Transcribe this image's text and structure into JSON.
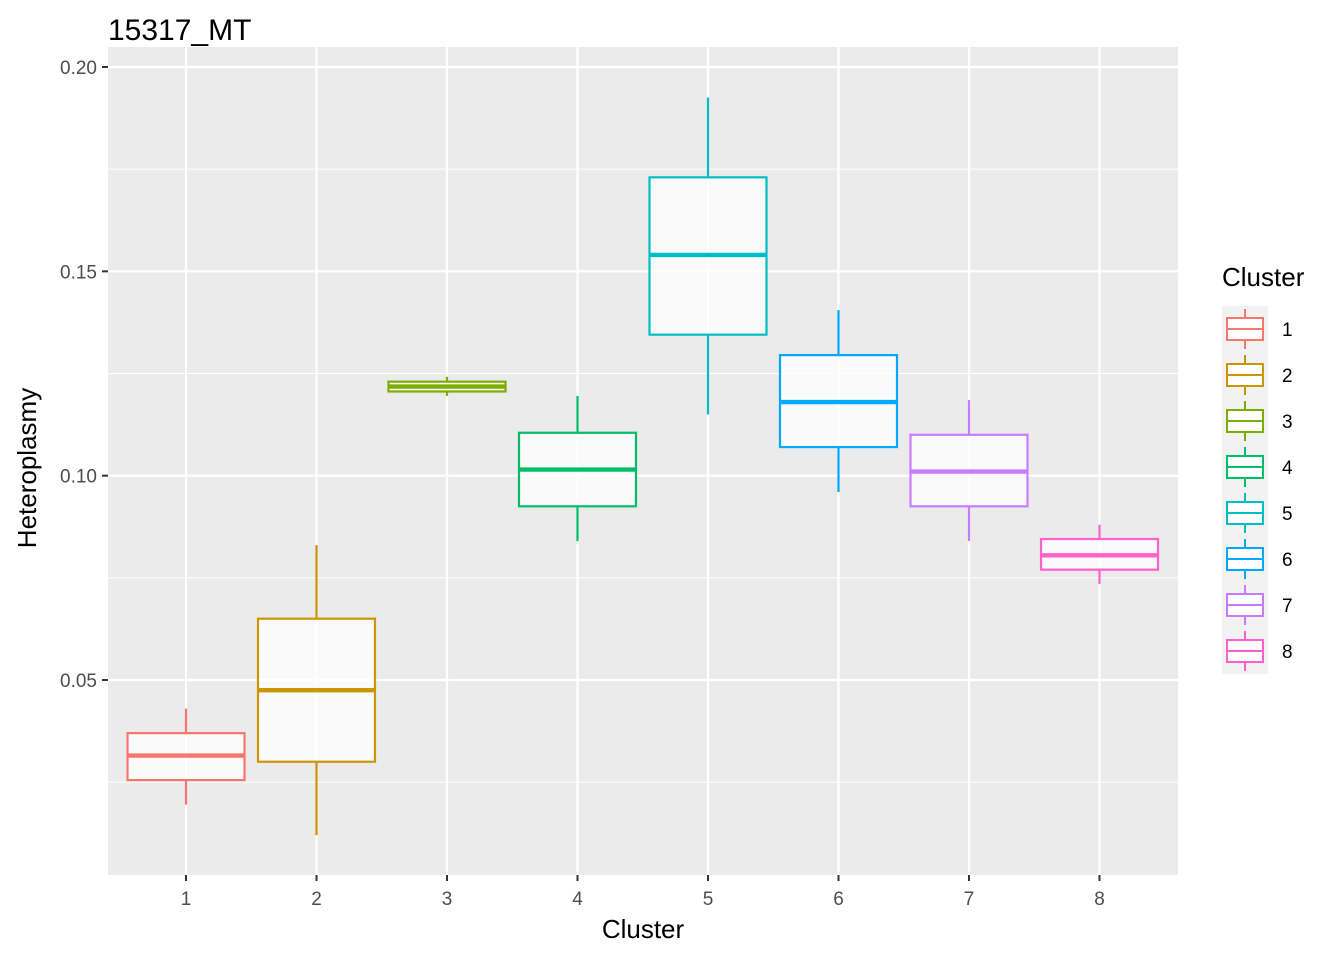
{
  "chart_data": {
    "type": "boxplot",
    "title": "15317_MT",
    "xlabel": "Cluster",
    "ylabel": "Heteroplasmy",
    "categories": [
      "1",
      "2",
      "3",
      "4",
      "5",
      "6",
      "7",
      "8"
    ],
    "ylim": [
      0.0,
      0.2
    ],
    "y_ticks": [
      {
        "value": 0.05,
        "label": "0.05"
      },
      {
        "value": 0.1,
        "label": "0.10"
      },
      {
        "value": 0.15,
        "label": "0.15"
      },
      {
        "value": 0.2,
        "label": "0.20"
      }
    ],
    "boxes": [
      {
        "cluster": "1",
        "min": 0.0195,
        "q1": 0.0255,
        "median": 0.0315,
        "q3": 0.037,
        "max": 0.043,
        "color": "#F8766D"
      },
      {
        "cluster": "2",
        "min": 0.012,
        "q1": 0.03,
        "median": 0.0475,
        "q3": 0.065,
        "max": 0.083,
        "color": "#CD9600"
      },
      {
        "cluster": "3",
        "min": 0.1195,
        "q1": 0.1206,
        "median": 0.1218,
        "q3": 0.123,
        "max": 0.1242,
        "color": "#7CAE00"
      },
      {
        "cluster": "4",
        "min": 0.084,
        "q1": 0.0925,
        "median": 0.1015,
        "q3": 0.1105,
        "max": 0.1195,
        "color": "#00BE67"
      },
      {
        "cluster": "5",
        "min": 0.115,
        "q1": 0.1345,
        "median": 0.154,
        "q3": 0.173,
        "max": 0.1925,
        "color": "#00BFC4"
      },
      {
        "cluster": "6",
        "min": 0.096,
        "q1": 0.107,
        "median": 0.118,
        "q3": 0.1295,
        "max": 0.1405,
        "color": "#00A9FF"
      },
      {
        "cluster": "7",
        "min": 0.084,
        "q1": 0.0925,
        "median": 0.101,
        "q3": 0.11,
        "max": 0.1185,
        "color": "#C77CFF"
      },
      {
        "cluster": "8",
        "min": 0.0735,
        "q1": 0.077,
        "median": 0.0805,
        "q3": 0.0845,
        "max": 0.088,
        "color": "#FF61CC"
      }
    ],
    "legend": {
      "title": "Cluster",
      "position": "right",
      "items": [
        {
          "label": "1",
          "color": "#F8766D"
        },
        {
          "label": "2",
          "color": "#CD9600"
        },
        {
          "label": "3",
          "color": "#7CAE00"
        },
        {
          "label": "4",
          "color": "#00BE67"
        },
        {
          "label": "5",
          "color": "#00BFC4"
        },
        {
          "label": "6",
          "color": "#00A9FF"
        },
        {
          "label": "7",
          "color": "#C77CFF"
        },
        {
          "label": "8",
          "color": "#FF61CC"
        }
      ]
    },
    "panel_background": "#EBEBEB",
    "grid": true,
    "grid_color": "#FFFFFF"
  }
}
